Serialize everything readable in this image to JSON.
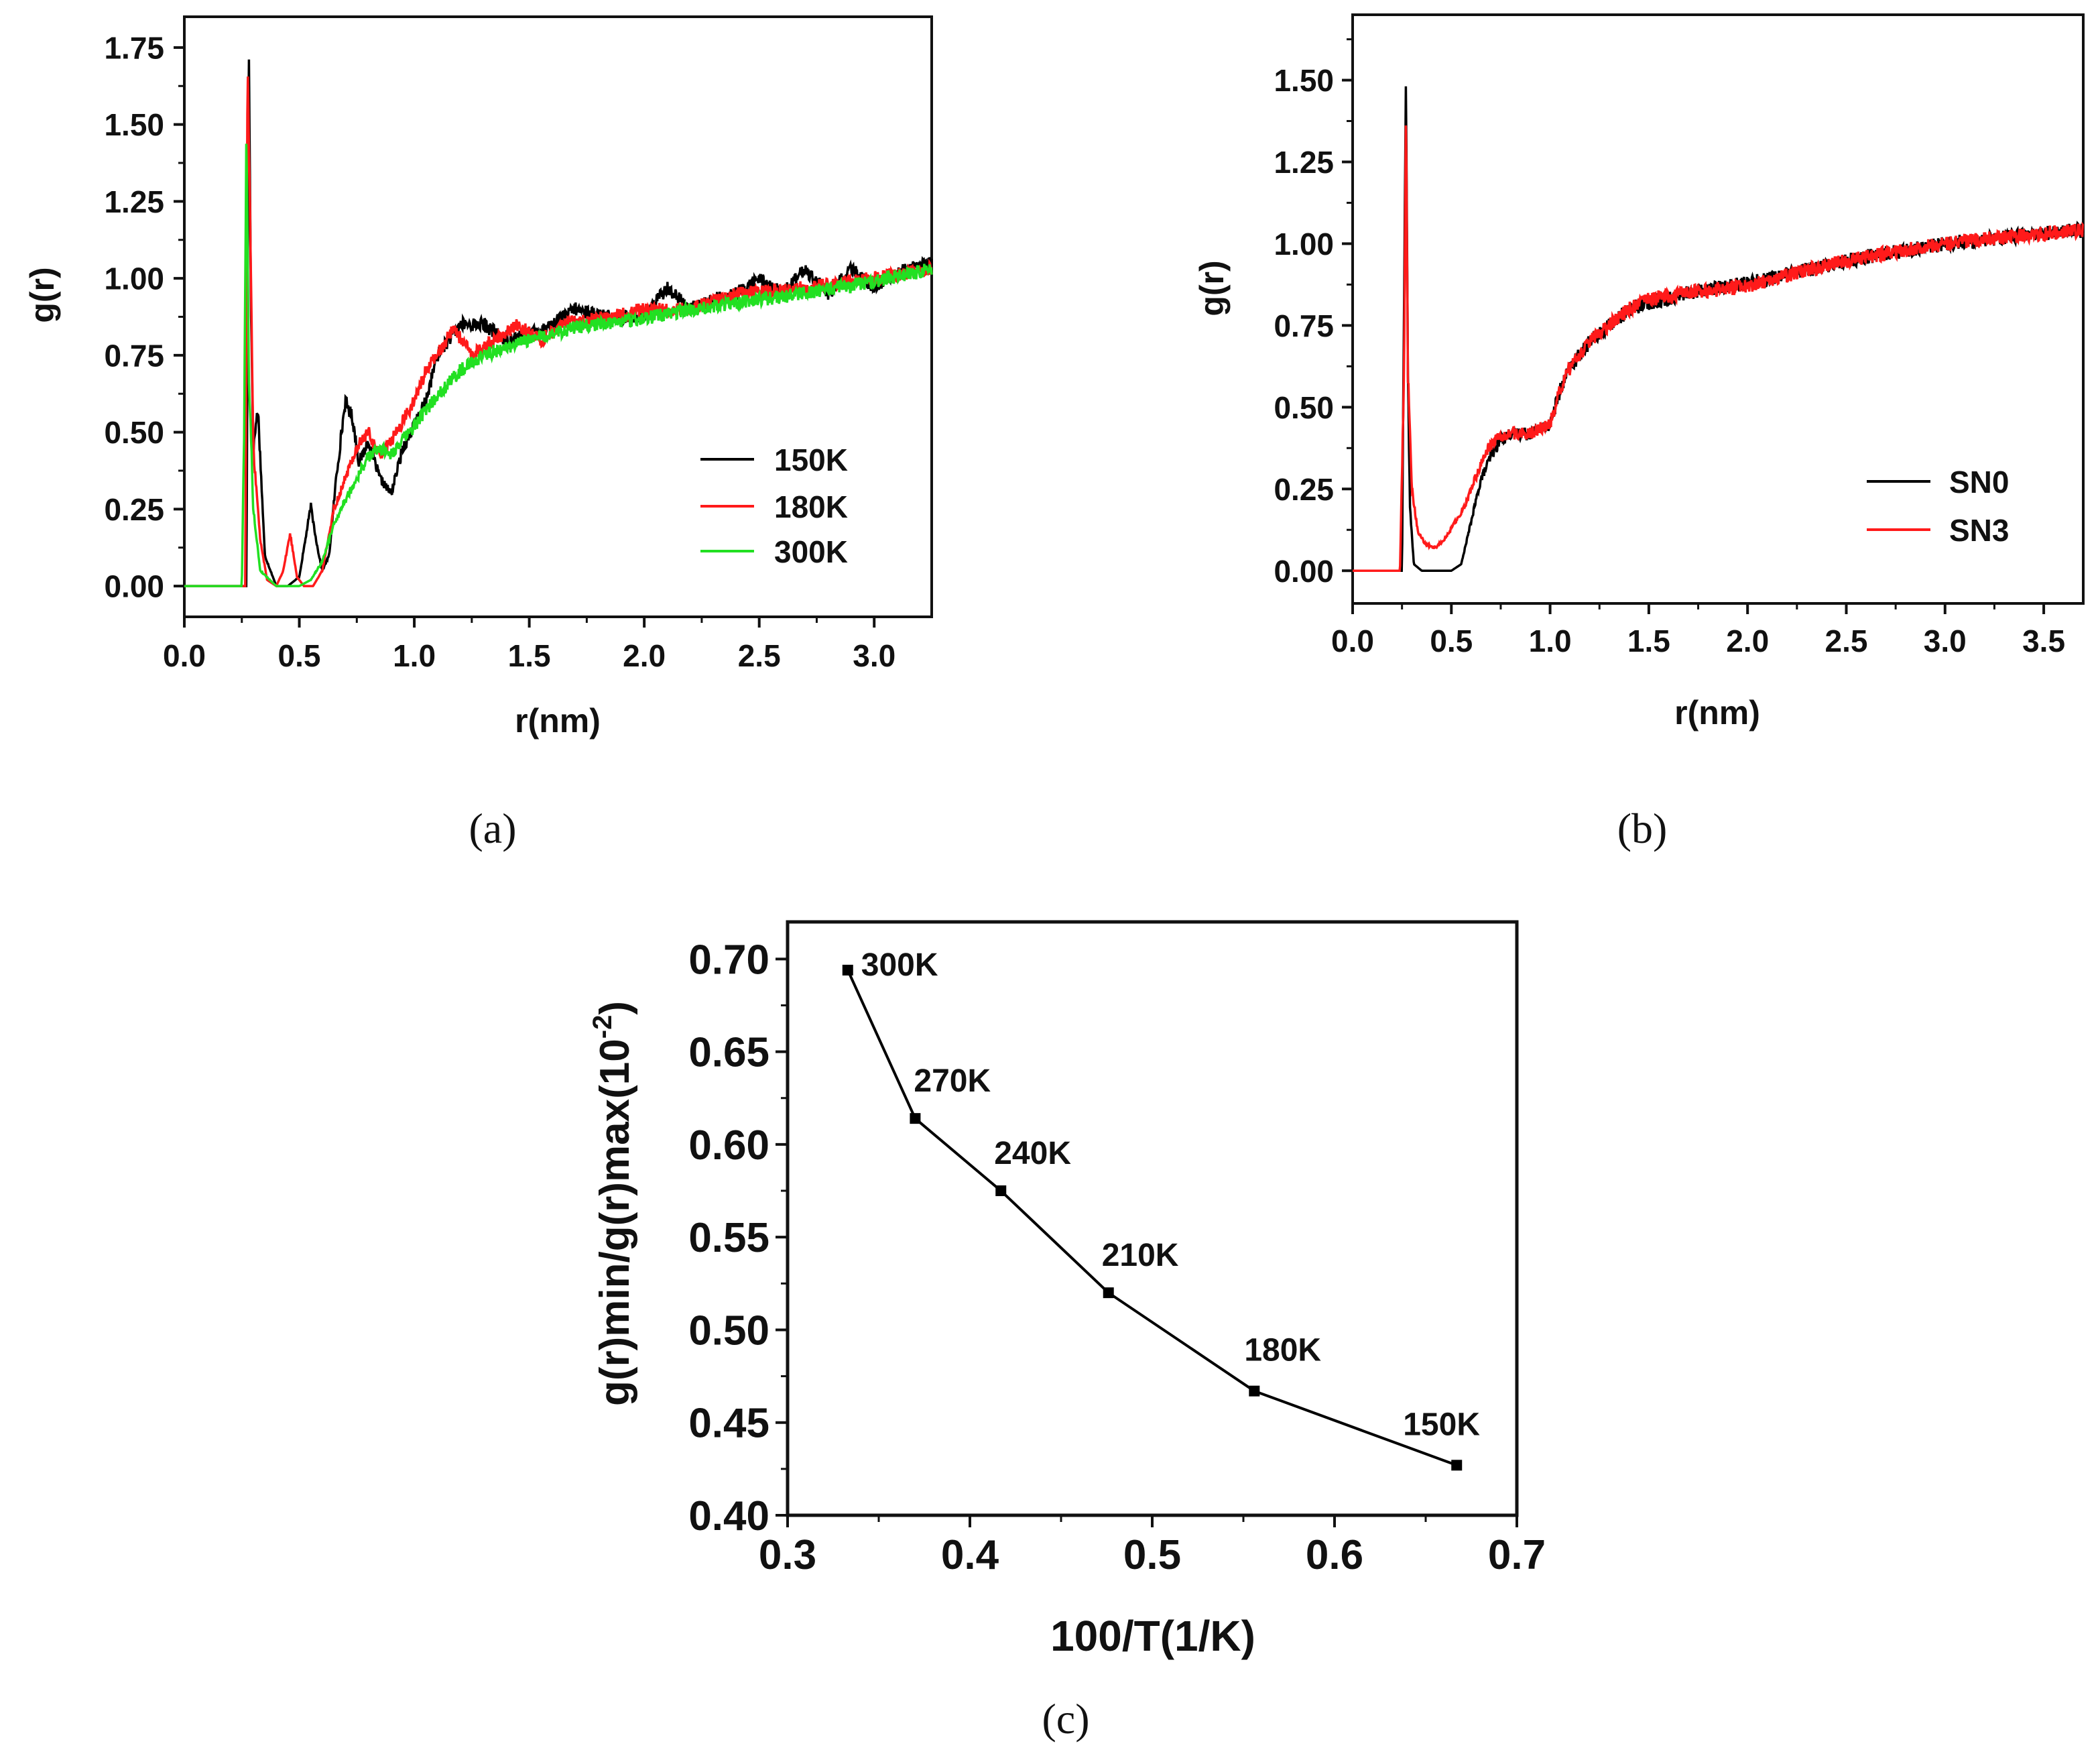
{
  "colors": {
    "black": "#000000",
    "red": "#ff1a1a",
    "green": "#22e022"
  },
  "chart_data": [
    {
      "type": "line",
      "panel": "(a)",
      "xlabel": "r(nm)",
      "ylabel": "g(r)",
      "xlim": [
        0,
        3.25
      ],
      "ylim": [
        -0.1,
        1.85
      ],
      "xticks": [
        "0.0",
        "0.5",
        "1.0",
        "1.5",
        "2.0",
        "2.5",
        "3.0"
      ],
      "yticks": [
        "0.00",
        "0.25",
        "0.50",
        "0.75",
        "1.00",
        "1.25",
        "1.50",
        "1.75"
      ],
      "legend_position": "center-right",
      "series": [
        {
          "name": "150K",
          "color": "#000000",
          "x": [
            0,
            0.27,
            0.28,
            0.29,
            0.3,
            0.32,
            0.35,
            0.4,
            0.45,
            0.5,
            0.55,
            0.58,
            0.6,
            0.63,
            0.66,
            0.7,
            0.73,
            0.76,
            0.8,
            0.85,
            0.9,
            0.95,
            1.0,
            1.05,
            1.1,
            1.2,
            1.3,
            1.4,
            1.5,
            1.6,
            1.7,
            1.8,
            1.9,
            2.0,
            2.1,
            2.2,
            2.3,
            2.4,
            2.5,
            2.6,
            2.7,
            2.8,
            2.9,
            3.0,
            3.1,
            3.25
          ],
          "y": [
            0,
            0,
            1.78,
            0.9,
            0.45,
            0.58,
            0.1,
            0.0,
            0.0,
            0.03,
            0.26,
            0.12,
            0.05,
            0.1,
            0.35,
            0.6,
            0.55,
            0.4,
            0.47,
            0.35,
            0.3,
            0.45,
            0.52,
            0.6,
            0.75,
            0.85,
            0.85,
            0.8,
            0.82,
            0.85,
            0.9,
            0.88,
            0.87,
            0.88,
            0.97,
            0.9,
            0.93,
            0.95,
            1.0,
            0.95,
            1.03,
            0.95,
            1.03,
            0.97,
            1.02,
            1.05
          ]
        },
        {
          "name": "180K",
          "color": "#ff1a1a",
          "x": [
            0,
            0.265,
            0.275,
            0.285,
            0.3,
            0.33,
            0.36,
            0.4,
            0.43,
            0.46,
            0.49,
            0.52,
            0.56,
            0.6,
            0.65,
            0.7,
            0.75,
            0.8,
            0.85,
            0.9,
            1.0,
            1.05,
            1.1,
            1.17,
            1.25,
            1.35,
            1.45,
            1.55,
            1.65,
            1.8,
            2.0,
            2.2,
            2.4,
            2.6,
            2.8,
            3.0,
            3.25
          ],
          "y": [
            0,
            0,
            1.72,
            1.25,
            0.45,
            0.15,
            0.02,
            0.0,
            0.05,
            0.17,
            0.03,
            0.0,
            0.0,
            0.05,
            0.25,
            0.35,
            0.45,
            0.5,
            0.42,
            0.47,
            0.6,
            0.7,
            0.75,
            0.84,
            0.75,
            0.8,
            0.85,
            0.8,
            0.85,
            0.87,
            0.9,
            0.9,
            0.95,
            0.96,
            0.98,
            1.0,
            1.03
          ]
        },
        {
          "name": "300K",
          "color": "#22e022",
          "x": [
            0,
            0.25,
            0.26,
            0.27,
            0.28,
            0.3,
            0.33,
            0.4,
            0.45,
            0.5,
            0.55,
            0.6,
            0.65,
            0.7,
            0.75,
            0.8,
            0.85,
            0.9,
            1.0,
            1.1,
            1.2,
            1.3,
            1.5,
            1.7,
            2.0,
            2.3,
            2.6,
            3.0,
            3.25
          ],
          "y": [
            0,
            0,
            0.5,
            1.5,
            0.7,
            0.25,
            0.05,
            0.0,
            0.0,
            0.0,
            0.02,
            0.08,
            0.2,
            0.28,
            0.35,
            0.42,
            0.45,
            0.43,
            0.52,
            0.62,
            0.7,
            0.75,
            0.8,
            0.84,
            0.87,
            0.91,
            0.94,
            0.99,
            1.03
          ]
        }
      ]
    },
    {
      "type": "line",
      "panel": "(b)",
      "xlabel": "r(nm)",
      "ylabel": "g(r)",
      "xlim": [
        0,
        3.7
      ],
      "ylim": [
        -0.1,
        1.7
      ],
      "xticks": [
        "0.0",
        "0.5",
        "1.0",
        "1.5",
        "2.0",
        "2.5",
        "3.0",
        "3.5"
      ],
      "yticks": [
        "0.00",
        "0.25",
        "0.50",
        "0.75",
        "1.00",
        "1.25",
        "1.50"
      ],
      "legend_position": "lower-right",
      "series": [
        {
          "name": "SN0",
          "color": "#000000",
          "x": [
            0,
            0.25,
            0.26,
            0.27,
            0.28,
            0.29,
            0.31,
            0.35,
            0.4,
            0.5,
            0.55,
            0.6,
            0.65,
            0.7,
            0.75,
            0.8,
            0.9,
            1.0,
            1.05,
            1.1,
            1.2,
            1.3,
            1.4,
            1.5,
            1.7,
            2.0,
            2.3,
            2.6,
            3.0,
            3.3,
            3.65
          ],
          "y": [
            0,
            0,
            0.8,
            1.5,
            0.6,
            0.2,
            0.02,
            0.0,
            0.0,
            0.0,
            0.02,
            0.15,
            0.28,
            0.35,
            0.4,
            0.42,
            0.42,
            0.45,
            0.55,
            0.62,
            0.7,
            0.75,
            0.8,
            0.82,
            0.85,
            0.88,
            0.92,
            0.96,
            1.0,
            1.02,
            1.04
          ]
        },
        {
          "name": "SN3",
          "color": "#ff1a1a",
          "x": [
            0,
            0.24,
            0.26,
            0.27,
            0.28,
            0.3,
            0.33,
            0.37,
            0.42,
            0.47,
            0.52,
            0.57,
            0.62,
            0.67,
            0.72,
            0.8,
            0.9,
            1.0,
            1.05,
            1.1,
            1.2,
            1.3,
            1.4,
            1.5,
            1.7,
            2.0,
            2.3,
            2.6,
            3.0,
            3.3,
            3.65
          ],
          "y": [
            0,
            0,
            0.6,
            1.4,
            0.6,
            0.25,
            0.12,
            0.08,
            0.07,
            0.1,
            0.15,
            0.2,
            0.28,
            0.36,
            0.4,
            0.42,
            0.42,
            0.45,
            0.55,
            0.62,
            0.7,
            0.75,
            0.8,
            0.83,
            0.85,
            0.87,
            0.92,
            0.96,
            1.0,
            1.02,
            1.04
          ]
        }
      ]
    },
    {
      "type": "line",
      "panel": "(c)",
      "xlabel": "100/T(1/K)",
      "ylabel_main": "g(r)min/g(r)max(10",
      "ylabel_sup": "-2",
      "ylabel_close": ")",
      "xlim": [
        0.3,
        0.7
      ],
      "ylim": [
        0.4,
        0.72
      ],
      "xticks": [
        "0.3",
        "0.4",
        "0.5",
        "0.6",
        "0.7"
      ],
      "yticks": [
        "0.40",
        "0.45",
        "0.50",
        "0.55",
        "0.60",
        "0.65",
        "0.70"
      ],
      "color": "#000000",
      "points": [
        {
          "x": 0.333,
          "y": 0.694,
          "label": "300K"
        },
        {
          "x": 0.37,
          "y": 0.614,
          "label": "270K"
        },
        {
          "x": 0.417,
          "y": 0.575,
          "label": "240K"
        },
        {
          "x": 0.476,
          "y": 0.52,
          "label": "210K"
        },
        {
          "x": 0.556,
          "y": 0.467,
          "label": "180K"
        },
        {
          "x": 0.667,
          "y": 0.427,
          "label": "150K"
        }
      ]
    }
  ]
}
